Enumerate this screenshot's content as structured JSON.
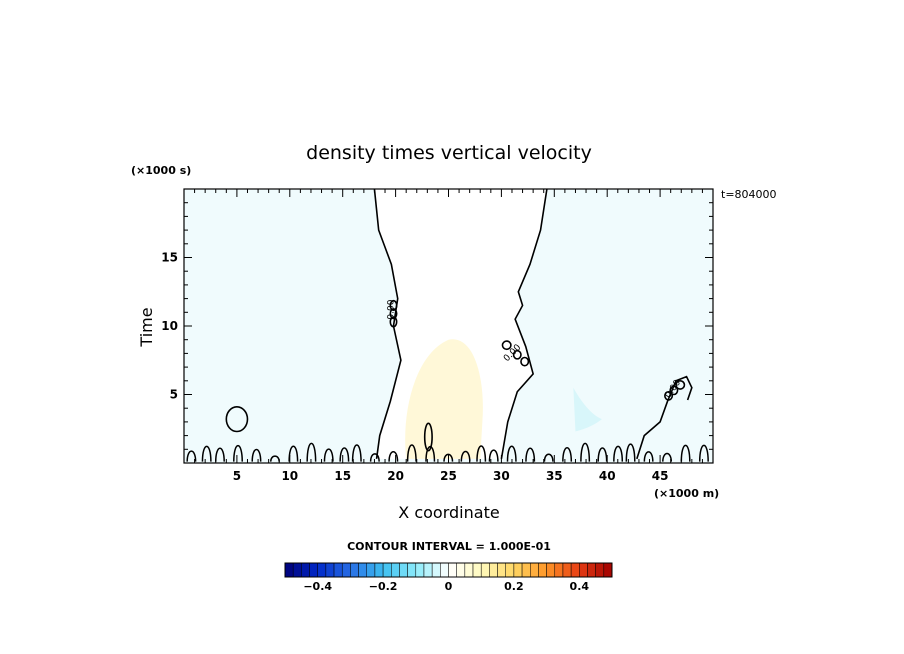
{
  "chart_data": {
    "type": "contour",
    "title": "density times vertical velocity",
    "xlabel": "X coordinate",
    "ylabel": "Time",
    "x_unit": "(×1000 m)",
    "y_unit": "(×1000 s)",
    "time_stamp": "t=804000",
    "xlim": [
      0,
      50
    ],
    "ylim": [
      0,
      20
    ],
    "xticks": [
      5,
      10,
      15,
      20,
      25,
      30,
      35,
      40,
      45
    ],
    "yticks": [
      5,
      10,
      15
    ],
    "contour_label": "0.00",
    "contour_interval_text": "CONTOUR INTERVAL = 1.000E-01",
    "colorbar": {
      "range": [
        -0.5,
        0.5
      ],
      "step": 0.025,
      "ticks": [
        -0.4,
        -0.2,
        0,
        0.2,
        0.4
      ],
      "tick_labels": [
        "−0.4",
        "−0.2",
        "0",
        "0.2",
        "0.4"
      ]
    },
    "colors": {
      "background_field": "#f0fbfd",
      "positive_region": "#fff8d8",
      "negative_region": "#d8f6fa"
    },
    "zero_contour_left": [
      [
        18,
        20
      ],
      [
        18.4,
        17
      ],
      [
        19.6,
        14.5
      ],
      [
        20.2,
        12
      ],
      [
        19.8,
        10
      ],
      [
        20.5,
        7.5
      ],
      [
        19.5,
        4.5
      ],
      [
        18.5,
        2
      ],
      [
        18.2,
        0.3
      ]
    ],
    "zero_contour_right": [
      [
        34.3,
        20
      ],
      [
        33.7,
        17
      ],
      [
        32.7,
        14.5
      ],
      [
        31.6,
        12.5
      ],
      [
        32,
        11.5
      ],
      [
        31.3,
        10.5
      ],
      [
        32.3,
        8.5
      ],
      [
        33,
        6.5
      ],
      [
        31.5,
        5.2
      ],
      [
        30.6,
        3
      ],
      [
        30,
        0.3
      ]
    ],
    "closed_contours": [
      {
        "cx": 5,
        "cy": 3.2,
        "rx": 1.0,
        "ry": 0.9
      },
      {
        "cx": 23.1,
        "cy": 1.9,
        "rx": 0.35,
        "ry": 1.0
      },
      {
        "cx": 30.5,
        "cy": 8.6,
        "rx": 0.4,
        "ry": 0.3
      },
      {
        "cx": 31.5,
        "cy": 7.9,
        "rx": 0.35,
        "ry": 0.3
      },
      {
        "cx": 32.2,
        "cy": 7.4,
        "rx": 0.35,
        "ry": 0.3
      },
      {
        "cx": 46.9,
        "cy": 5.7,
        "rx": 0.4,
        "ry": 0.3
      },
      {
        "cx": 46.3,
        "cy": 5.3,
        "rx": 0.35,
        "ry": 0.3
      },
      {
        "cx": 45.8,
        "cy": 4.9,
        "rx": 0.35,
        "ry": 0.3
      },
      {
        "cx": 19.8,
        "cy": 11.5,
        "rx": 0.3,
        "ry": 0.35
      },
      {
        "cx": 19.8,
        "cy": 10.9,
        "rx": 0.3,
        "ry": 0.35
      },
      {
        "cx": 19.8,
        "cy": 10.3,
        "rx": 0.3,
        "ry": 0.35
      }
    ]
  }
}
